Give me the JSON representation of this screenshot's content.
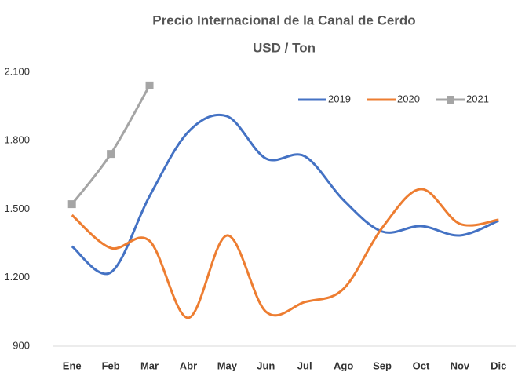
{
  "chart_data": {
    "type": "line",
    "title": "Precio Internacional de la Canal de Cerdo",
    "subtitle": "USD / Ton",
    "categories": [
      "Ene",
      "Feb",
      "Mar",
      "Abr",
      "May",
      "Jun",
      "Jul",
      "Ago",
      "Sep",
      "Oct",
      "Nov",
      "Dic"
    ],
    "series": [
      {
        "name": "2019",
        "color": "#4472c4",
        "values": [
          1337,
          1223,
          1557,
          1839,
          1907,
          1722,
          1732,
          1540,
          1402,
          1426,
          1385,
          1450
        ]
      },
      {
        "name": "2020",
        "color": "#ed7d31",
        "values": [
          1474,
          1330,
          1361,
          1024,
          1385,
          1051,
          1093,
          1151,
          1419,
          1588,
          1436,
          1454
        ]
      },
      {
        "name": "2021",
        "color": "#a5a5a5",
        "marker": "square",
        "values": [
          1522,
          1742,
          2042,
          null,
          null,
          null,
          null,
          null,
          null,
          null,
          null,
          null
        ]
      }
    ],
    "ylim": [
      900,
      2100
    ],
    "yticks": [
      {
        "value": 900,
        "label": "900"
      },
      {
        "value": 1200,
        "label": "1.200"
      },
      {
        "value": 1500,
        "label": "1.500"
      },
      {
        "value": 1800,
        "label": "1.800"
      },
      {
        "value": 2100,
        "label": "2.100"
      }
    ],
    "grid": false,
    "legend": "top-right"
  }
}
